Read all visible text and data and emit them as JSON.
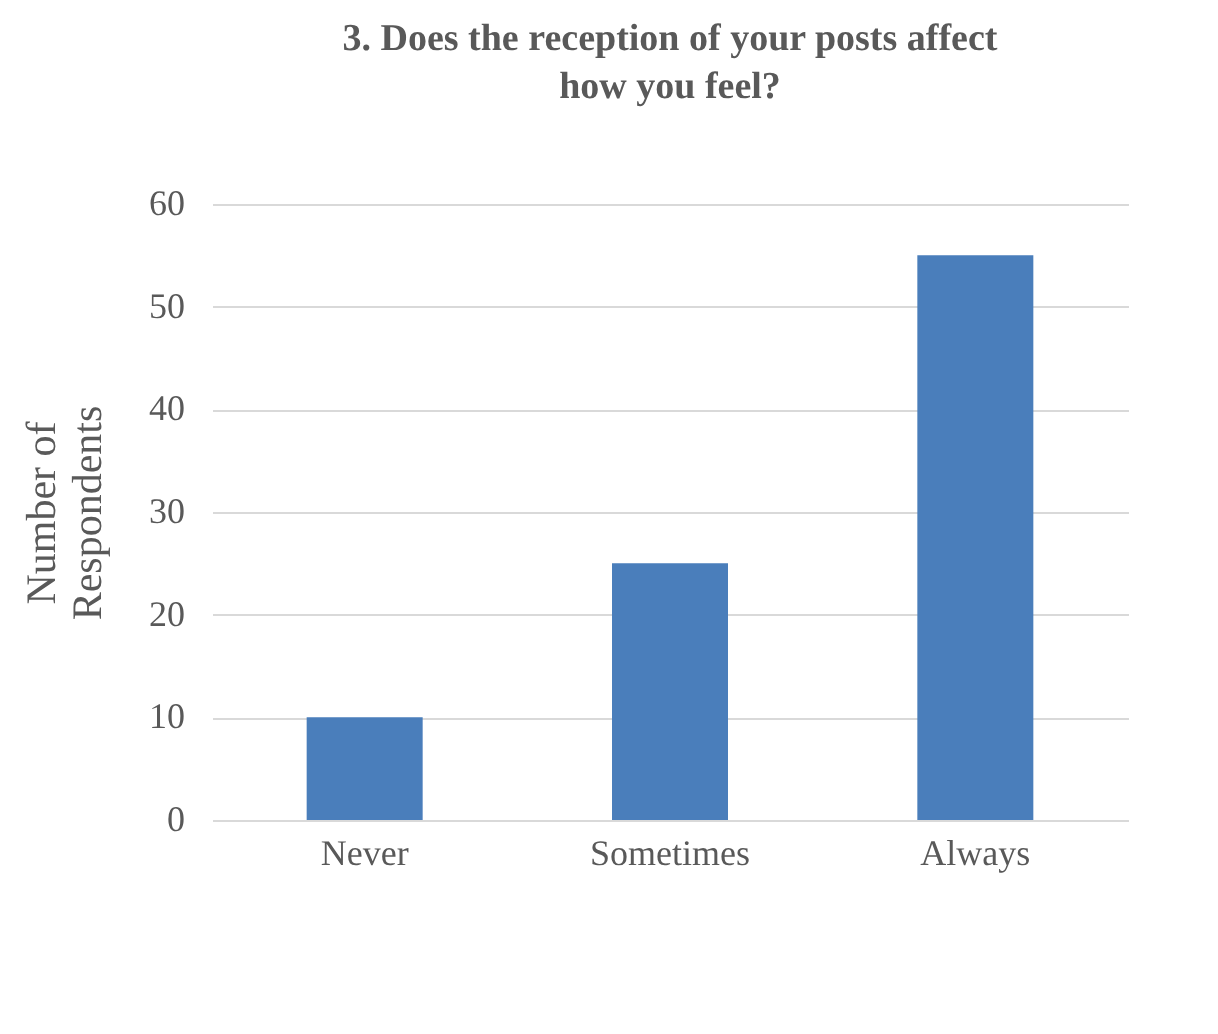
{
  "chart_data": {
    "type": "bar",
    "title": "3. Does the reception of your posts affect how you feel?",
    "ylabel": "Number of Respondents",
    "categories": [
      "Never",
      "Sometimes",
      "Always"
    ],
    "values": [
      10,
      25,
      55
    ],
    "color": "#4a7ebb",
    "ylim": [
      0,
      60
    ],
    "yticks": [
      0,
      10,
      20,
      30,
      40,
      50,
      60
    ],
    "grid": "y"
  }
}
